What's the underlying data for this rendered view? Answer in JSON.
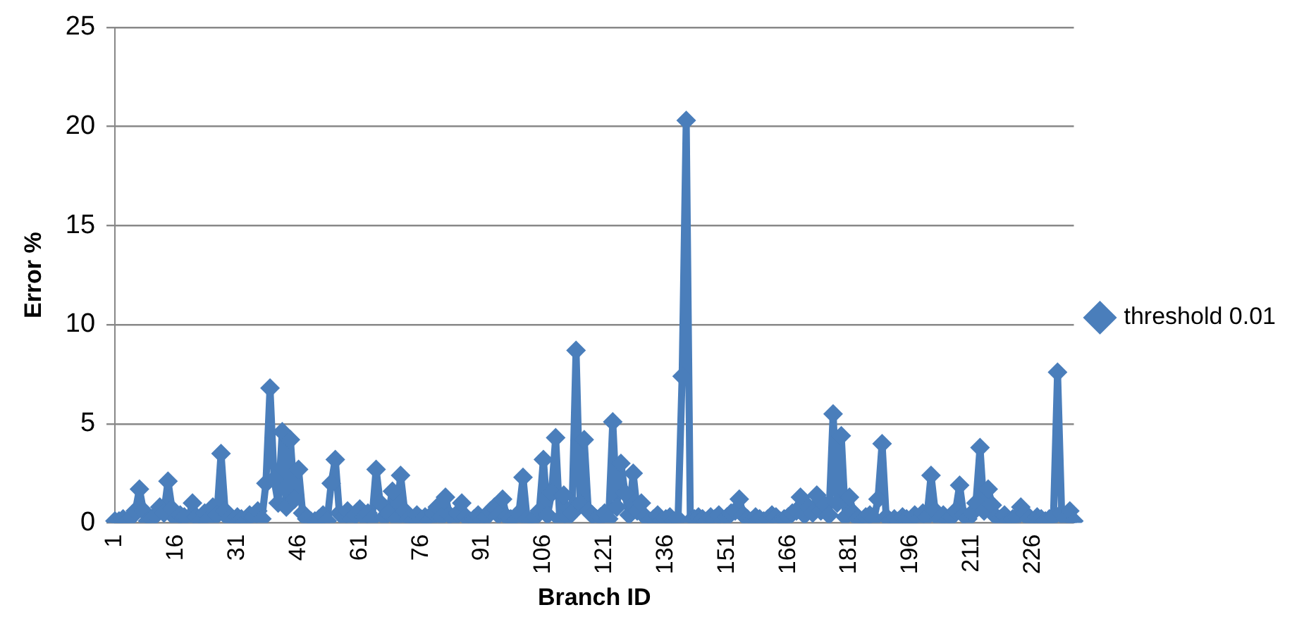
{
  "chart_data": {
    "type": "line",
    "xlabel": "Branch ID",
    "ylabel": "Error %",
    "categories": [
      "1",
      null,
      null,
      null,
      null,
      null,
      null,
      null,
      null,
      null,
      null,
      null,
      null,
      null,
      null,
      "16",
      null,
      null,
      null,
      null,
      null,
      null,
      null,
      null,
      null,
      null,
      null,
      null,
      null,
      null,
      "31",
      null,
      null,
      null,
      null,
      null,
      null,
      null,
      null,
      null,
      null,
      null,
      null,
      null,
      null,
      "46",
      null,
      null,
      null,
      null,
      null,
      null,
      null,
      null,
      null,
      null,
      null,
      null,
      null,
      null,
      "61",
      null,
      null,
      null,
      null,
      null,
      null,
      null,
      null,
      null,
      null,
      null,
      null,
      null,
      null,
      "76",
      null,
      null,
      null,
      null,
      null,
      null,
      null,
      null,
      null,
      null,
      null,
      null,
      null,
      null,
      "91",
      null,
      null,
      null,
      null,
      null,
      null,
      null,
      null,
      null,
      null,
      null,
      null,
      null,
      null,
      "106",
      null,
      null,
      null,
      null,
      null,
      null,
      null,
      null,
      null,
      null,
      null,
      null,
      null,
      null,
      "121",
      null,
      null,
      null,
      null,
      null,
      null,
      null,
      null,
      null,
      null,
      null,
      null,
      null,
      null,
      "136",
      null,
      null,
      null,
      null,
      null,
      null,
      null,
      null,
      null,
      null,
      null,
      null,
      null,
      null,
      "151",
      null,
      null,
      null,
      null,
      null,
      null,
      null,
      null,
      null,
      null,
      null,
      null,
      null,
      null,
      "166",
      null,
      null,
      null,
      null,
      null,
      null,
      null,
      null,
      null,
      null,
      null,
      null,
      null,
      null,
      "181",
      null,
      null,
      null,
      null,
      null,
      null,
      null,
      null,
      null,
      null,
      null,
      null,
      null,
      null,
      "196",
      null,
      null,
      null,
      null,
      null,
      null,
      null,
      null,
      null,
      null,
      null,
      null,
      null,
      null,
      "211",
      null,
      null,
      null,
      null,
      null,
      null,
      null,
      null,
      null,
      null,
      null,
      null,
      null,
      null,
      "226",
      null,
      null,
      null,
      null,
      null,
      null,
      null,
      null,
      null,
      null
    ],
    "series": [
      {
        "name": "threshold 0.01",
        "color": "#4a7ebb",
        "values": [
          0.1,
          0.1,
          0.2,
          0.1,
          0.3,
          0.6,
          1.7,
          0.6,
          0.1,
          0.2,
          0.4,
          0.8,
          0.5,
          2.1,
          0.7,
          0.2,
          0.4,
          0.3,
          0.2,
          1.0,
          0.3,
          0.1,
          0.5,
          0.2,
          0.8,
          0.4,
          3.5,
          0.6,
          0.2,
          0.1,
          0.3,
          0.2,
          0.1,
          0.4,
          0.3,
          0.6,
          0.2,
          2.0,
          6.8,
          2.2,
          1.0,
          4.6,
          0.8,
          4.2,
          1.2,
          2.7,
          0.5,
          0.2,
          0.1,
          0.1,
          0.2,
          0.4,
          0.1,
          2.0,
          3.2,
          0.5,
          0.3,
          0.6,
          0.2,
          0.4,
          0.7,
          0.3,
          0.5,
          0.2,
          2.7,
          1.0,
          0.3,
          0.5,
          1.6,
          0.2,
          2.4,
          0.6,
          0.2,
          0.1,
          0.4,
          0.2,
          0.3,
          0.1,
          0.5,
          0.8,
          0.3,
          1.3,
          0.4,
          0.2,
          0.5,
          1.0,
          0.3,
          0.1,
          0.2,
          0.4,
          0.1,
          0.3,
          0.6,
          0.8,
          0.4,
          1.2,
          0.3,
          0.2,
          0.1,
          0.5,
          2.3,
          0.2,
          0.1,
          0.3,
          0.6,
          3.2,
          0.4,
          1.5,
          4.3,
          0.2,
          1.4,
          0.3,
          0.5,
          8.7,
          1.0,
          4.2,
          0.6,
          0.4,
          0.2,
          0.3,
          0.5,
          0.2,
          5.1,
          0.8,
          3.0,
          1.5,
          0.4,
          2.5,
          0.6,
          1.0,
          0.3,
          0.1,
          0.2,
          0.4,
          0.1,
          0.2,
          0.3,
          0.1,
          0.2,
          7.4,
          20.3,
          0.1,
          0.2,
          0.3,
          0.2,
          0.1,
          0.3,
          0.2,
          0.4,
          0.1,
          0.3,
          0.5,
          0.6,
          1.2,
          0.4,
          0.2,
          0.1,
          0.3,
          0.2,
          0.1,
          0.2,
          0.4,
          0.3,
          0.1,
          0.2,
          0.3,
          0.5,
          0.6,
          1.3,
          0.4,
          0.8,
          0.5,
          1.4,
          0.6,
          0.9,
          0.4,
          5.5,
          1.0,
          4.4,
          0.3,
          1.3,
          0.5,
          0.2,
          0.1,
          0.3,
          0.4,
          0.2,
          1.2,
          4.0,
          0.3,
          0.1,
          0.2,
          0.1,
          0.3,
          0.2,
          0.1,
          0.4,
          0.2,
          0.5,
          0.3,
          2.4,
          0.6,
          0.2,
          0.4,
          0.1,
          0.3,
          0.6,
          1.9,
          0.4,
          0.2,
          0.5,
          1.0,
          3.8,
          0.6,
          1.7,
          0.9,
          0.3,
          0.2,
          0.4,
          0.1,
          0.2,
          0.3,
          0.8,
          0.5,
          0.2,
          0.1,
          0.3,
          0.2,
          0.1,
          0.2,
          0.3,
          7.6,
          0.5,
          0.2,
          0.6,
          0.1
        ]
      }
    ],
    "ylim": [
      0,
      25
    ],
    "yticks": [
      0,
      5,
      10,
      15,
      20,
      25
    ],
    "grid": "y",
    "legend": "right",
    "marker": "diamond",
    "line_style": "solid"
  }
}
